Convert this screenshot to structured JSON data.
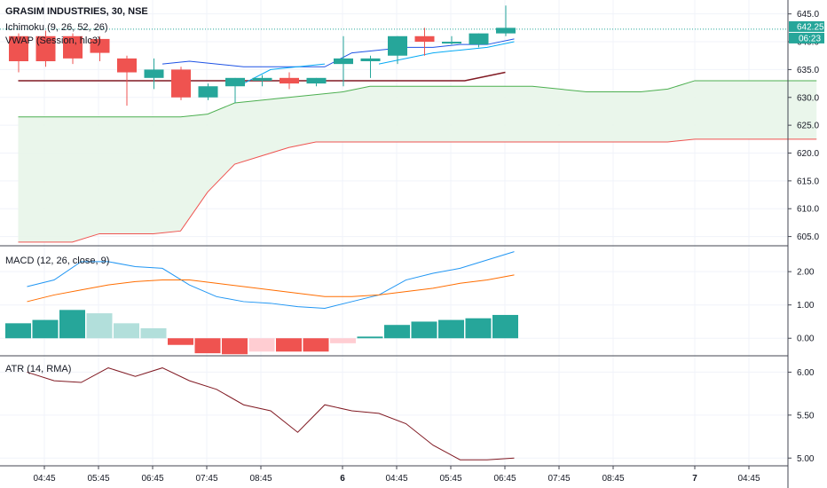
{
  "symbol_title": "GRASIM INDUSTRIES, 30, NSE",
  "legends": {
    "ichimoku": "Ichimoku (9, 26, 52, 26)",
    "vwap": "VWAP (Session, hlc3)",
    "macd": "MACD (12, 26, close, 9)",
    "atr": "ATR (14, RMA)"
  },
  "price_badge": "642.25",
  "countdown_badge": "06:23",
  "colors": {
    "up": "#26a69a",
    "down": "#ef5350",
    "hist_up_light": "#b2dfdb",
    "hist_down_light": "#ffcdd2",
    "macd_line": "#2196f3",
    "signal_line": "#ff6d00",
    "atr_line": "#801922",
    "cloud_top": "#4caf50",
    "cloud_bottom": "#ef5350",
    "cloud_fill": "#e8f5e9",
    "vwap_line": "#2962ff",
    "base_line": "#801922",
    "price_line": "#26a69a"
  },
  "chart_data": {
    "type": "candlestick",
    "symbol": "GRASIM INDUSTRIES",
    "interval": "30",
    "exchange": "NSE",
    "x_tick_labels": [
      "04:45",
      "05:45",
      "06:45",
      "07:45",
      "08:45",
      "6",
      "04:45",
      "05:45",
      "06:45",
      "07:45",
      "08:45",
      "7",
      "04:45"
    ],
    "price_axis": {
      "ticks": [
        605,
        610,
        615,
        620,
        625,
        630,
        635,
        640,
        645
      ],
      "ylim": [
        603.5,
        647.5
      ],
      "last_price": 642.25
    },
    "candles": [
      {
        "o": 641.0,
        "h": 641.5,
        "l": 634.5,
        "c": 636.5
      },
      {
        "o": 641.0,
        "h": 642.0,
        "l": 635.5,
        "c": 636.5
      },
      {
        "o": 641.0,
        "h": 641.5,
        "l": 636.0,
        "c": 637.0
      },
      {
        "o": 640.5,
        "h": 641.0,
        "l": 636.5,
        "c": 638.0
      },
      {
        "o": 637.0,
        "h": 637.5,
        "l": 628.5,
        "c": 634.5
      },
      {
        "o": 633.5,
        "h": 637.0,
        "l": 631.5,
        "c": 635.0
      },
      {
        "o": 635.0,
        "h": 635.5,
        "l": 629.5,
        "c": 630.0
      },
      {
        "o": 630.0,
        "h": 632.5,
        "l": 629.5,
        "c": 632.0
      },
      {
        "o": 632.0,
        "h": 633.5,
        "l": 629.0,
        "c": 633.5
      },
      {
        "o": 633.0,
        "h": 634.0,
        "l": 632.0,
        "c": 633.5
      },
      {
        "o": 633.5,
        "h": 634.5,
        "l": 631.5,
        "c": 632.5
      },
      {
        "o": 632.5,
        "h": 633.5,
        "l": 632.0,
        "c": 633.5
      },
      {
        "o": 636.0,
        "h": 641.0,
        "l": 632.0,
        "c": 637.0
      },
      {
        "o": 636.5,
        "h": 637.5,
        "l": 633.5,
        "c": 637.0
      },
      {
        "o": 637.5,
        "h": 641.0,
        "l": 636.0,
        "c": 641.0
      },
      {
        "o": 641.0,
        "h": 642.5,
        "l": 637.5,
        "c": 640.0
      },
      {
        "o": 640.0,
        "h": 641.0,
        "l": 639.5,
        "c": 640.0
      },
      {
        "o": 639.5,
        "h": 641.5,
        "l": 639.0,
        "c": 641.5
      },
      {
        "o": 641.5,
        "h": 646.5,
        "l": 641.0,
        "c": 642.5
      }
    ],
    "vwap": [
      null,
      null,
      null,
      null,
      null,
      636.0,
      636.5,
      636.0,
      635.5,
      635.5,
      635.5,
      635.5,
      638.0,
      638.5,
      639.0,
      639.0,
      639.5,
      639.5,
      640.5
    ],
    "vwap2": [
      null,
      null,
      null,
      null,
      null,
      null,
      null,
      null,
      632.5,
      635.0,
      635.5,
      636.0,
      null,
      636.0,
      637.0,
      638.0,
      638.5,
      639.0,
      640.0
    ],
    "base_line": {
      "value": 633.0,
      "from": 0,
      "to": 17,
      "end_value": 634.5
    },
    "cloud_top": [
      {
        "x": 0,
        "y": 626.5
      },
      {
        "x": 6,
        "y": 626.5
      },
      {
        "x": 7,
        "y": 627.0
      },
      {
        "x": 8,
        "y": 629.0
      },
      {
        "x": 9,
        "y": 629.5
      },
      {
        "x": 10,
        "y": 630.0
      },
      {
        "x": 12,
        "y": 631.0
      },
      {
        "x": 13,
        "y": 632.0
      },
      {
        "x": 19,
        "y": 632.0
      },
      {
        "x": 21,
        "y": 631.0
      },
      {
        "x": 23,
        "y": 631.0
      },
      {
        "x": 24,
        "y": 631.5
      },
      {
        "x": 25,
        "y": 633.0
      },
      {
        "x": 29.5,
        "y": 633.0
      }
    ],
    "cloud_bottom": [
      {
        "x": 0,
        "y": 604.0
      },
      {
        "x": 2,
        "y": 604.0
      },
      {
        "x": 3,
        "y": 605.5
      },
      {
        "x": 5,
        "y": 605.5
      },
      {
        "x": 6,
        "y": 606.0
      },
      {
        "x": 7,
        "y": 613.0
      },
      {
        "x": 8,
        "y": 618.0
      },
      {
        "x": 9,
        "y": 619.5
      },
      {
        "x": 10,
        "y": 621.0
      },
      {
        "x": 11,
        "y": 622.0
      },
      {
        "x": 24,
        "y": 622.0
      },
      {
        "x": 25,
        "y": 622.5
      },
      {
        "x": 29.5,
        "y": 622.5
      }
    ],
    "macd": {
      "axis_ticks": [
        0.0,
        1.0,
        2.0
      ],
      "ylim": [
        -0.5,
        2.75
      ],
      "macd_line": [
        1.55,
        1.75,
        2.3,
        2.3,
        2.15,
        2.1,
        1.6,
        1.25,
        1.1,
        1.05,
        0.95,
        0.9,
        1.1,
        1.3,
        1.75,
        1.95,
        2.1,
        2.35,
        2.6
      ],
      "signal_line": [
        1.1,
        1.3,
        1.45,
        1.6,
        1.7,
        1.75,
        1.75,
        1.65,
        1.55,
        1.45,
        1.35,
        1.25,
        1.25,
        1.3,
        1.4,
        1.5,
        1.65,
        1.75,
        1.9
      ],
      "histogram": [
        0.45,
        0.55,
        0.85,
        0.75,
        0.45,
        0.3,
        -0.2,
        -0.45,
        -0.48,
        -0.4,
        -0.4,
        -0.4,
        -0.15,
        0.05,
        0.4,
        0.5,
        0.55,
        0.6,
        0.7
      ]
    },
    "atr": {
      "axis_ticks": [
        5.0,
        5.5,
        6.0
      ],
      "ylim": [
        4.92,
        6.18
      ],
      "values": [
        6.0,
        5.9,
        5.88,
        6.05,
        5.95,
        6.05,
        5.9,
        5.8,
        5.62,
        5.55,
        5.3,
        5.62,
        5.55,
        5.52,
        5.4,
        5.15,
        4.98,
        4.98,
        5.0
      ]
    }
  }
}
